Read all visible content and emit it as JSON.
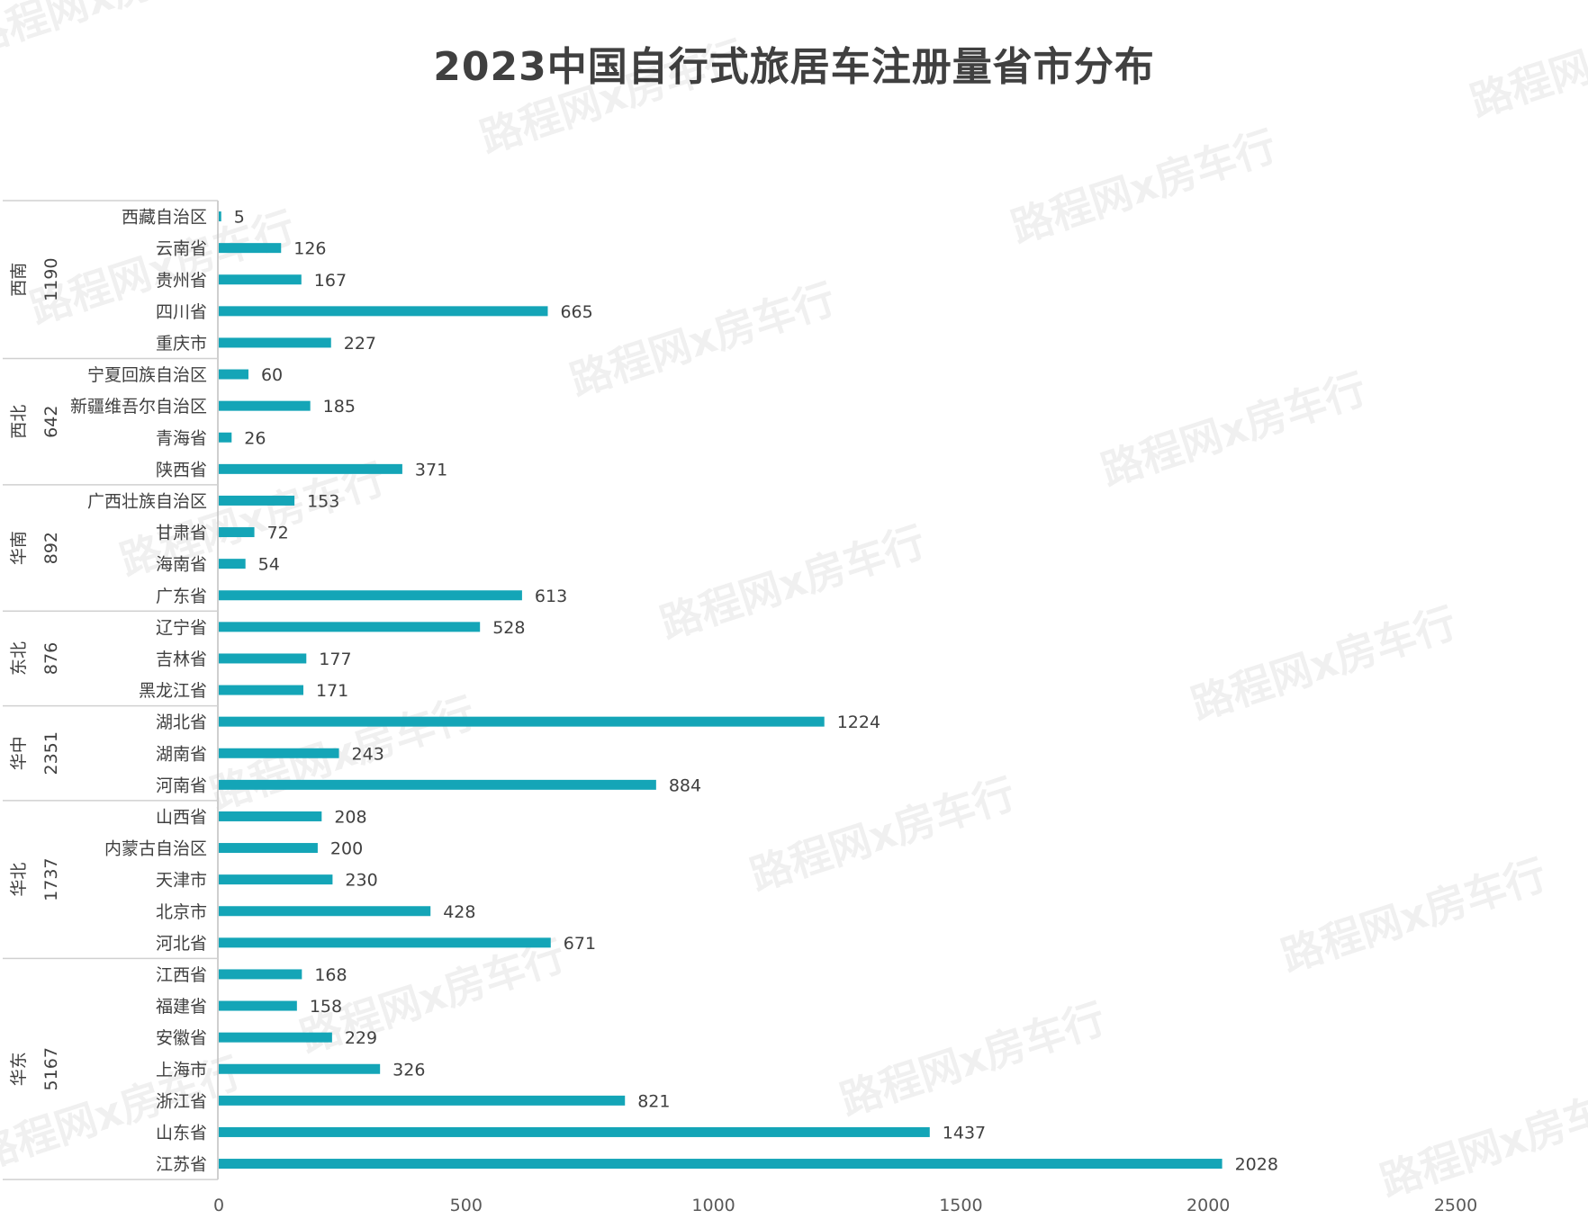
{
  "chart_data": {
    "type": "bar",
    "orientation": "horizontal",
    "title": "2023中国自行式旅居车注册量省市分布",
    "xlabel": "",
    "ylabel": "",
    "xlim": [
      0,
      2500
    ],
    "ticks": [
      "0",
      "500",
      "1000",
      "1500",
      "2000",
      "2500"
    ],
    "grid": false,
    "legend": "none",
    "bar_color": "#14A5B7",
    "groups": [
      {
        "name": "西南",
        "total": "1190",
        "categories": [
          "西藏自治区",
          "云南省",
          "贵州省",
          "四川省",
          "重庆市"
        ],
        "values": [
          5,
          126,
          167,
          665,
          227
        ]
      },
      {
        "name": "西北",
        "total": "642",
        "categories": [
          "宁夏回族自治区",
          "新疆维吾尔自治区",
          "青海省",
          "陕西省"
        ],
        "values": [
          60,
          185,
          26,
          371
        ]
      },
      {
        "name": "华南",
        "total": "892",
        "categories": [
          "广西壮族自治区",
          "甘肃省",
          "海南省",
          "广东省"
        ],
        "values": [
          153,
          72,
          54,
          613
        ]
      },
      {
        "name": "东北",
        "total": "876",
        "categories": [
          "辽宁省",
          "吉林省",
          "黑龙江省"
        ],
        "values": [
          528,
          177,
          171
        ]
      },
      {
        "name": "华中",
        "total": "2351",
        "categories": [
          "湖北省",
          "湖南省",
          "河南省"
        ],
        "values": [
          1224,
          243,
          884
        ]
      },
      {
        "name": "华北",
        "total": "1737",
        "categories": [
          "山西省",
          "内蒙古自治区",
          "天津市",
          "北京市",
          "河北省"
        ],
        "values": [
          208,
          200,
          230,
          428,
          671
        ]
      },
      {
        "name": "华东",
        "total": "5167",
        "categories": [
          "江西省",
          "福建省",
          "安徽省",
          "上海市",
          "浙江省",
          "山东省",
          "江苏省"
        ],
        "values": [
          168,
          158,
          229,
          326,
          821,
          1437,
          2028
        ]
      }
    ]
  },
  "watermark": "路程网x房车行"
}
